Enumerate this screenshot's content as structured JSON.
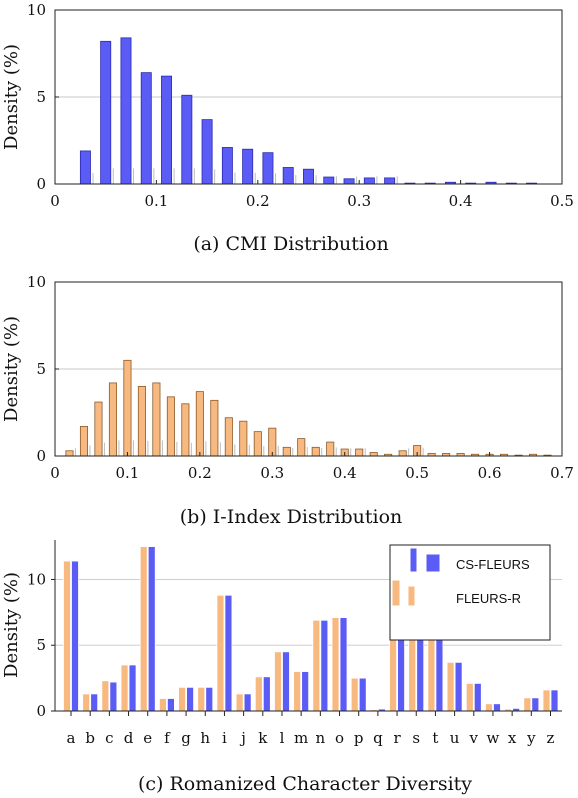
{
  "colors": {
    "blue": "#5b5bf5",
    "orange": "#f7b980",
    "grid": "#c8c8c8"
  },
  "chart_data": [
    {
      "type": "bar",
      "caption": "(a) CMI Distribution",
      "ylabel": "Density (%)",
      "xlim": [
        0,
        0.5
      ],
      "ylim": [
        0,
        10
      ],
      "xticks": [
        "0",
        "0.1",
        "0.2",
        "0.3",
        "0.4",
        "0.5"
      ],
      "yticks": [
        "0",
        "5",
        "10"
      ],
      "grid": true,
      "bar_width": 0.01,
      "series": [
        {
          "color": "blue",
          "x": [
            0.03,
            0.05,
            0.07,
            0.09,
            0.11,
            0.13,
            0.15,
            0.17,
            0.19,
            0.21,
            0.23,
            0.25,
            0.27,
            0.29,
            0.31,
            0.33,
            0.35,
            0.37,
            0.39,
            0.41,
            0.43,
            0.45,
            0.47,
            0.49
          ],
          "values": [
            1.9,
            8.2,
            8.4,
            6.4,
            6.2,
            5.1,
            3.7,
            2.1,
            2.0,
            1.8,
            0.95,
            0.85,
            0.4,
            0.3,
            0.35,
            0.35,
            0.05,
            0.05,
            0.1,
            0.05,
            0.1,
            0.05,
            0.05,
            0.0
          ]
        }
      ]
    },
    {
      "type": "bar",
      "caption": "(b) I-Index Distribution",
      "ylabel": "Density (%)",
      "xlim": [
        0,
        0.7
      ],
      "ylim": [
        0,
        10
      ],
      "xticks": [
        "0",
        "0.1",
        "0.2",
        "0.3",
        "0.4",
        "0.5",
        "0.6",
        "0.7"
      ],
      "yticks": [
        "0",
        "5",
        "10"
      ],
      "grid": true,
      "bar_width": 0.01,
      "series": [
        {
          "color": "orange",
          "x": [
            0.02,
            0.04,
            0.06,
            0.08,
            0.1,
            0.12,
            0.14,
            0.16,
            0.18,
            0.2,
            0.22,
            0.24,
            0.26,
            0.28,
            0.3,
            0.32,
            0.34,
            0.36,
            0.38,
            0.4,
            0.42,
            0.44,
            0.46,
            0.48,
            0.5,
            0.52,
            0.54,
            0.56,
            0.58,
            0.6,
            0.62,
            0.64,
            0.66,
            0.68
          ],
          "values": [
            0.3,
            1.7,
            3.1,
            4.2,
            5.5,
            4.0,
            4.2,
            3.4,
            3.0,
            3.7,
            3.2,
            2.2,
            2.0,
            1.4,
            1.6,
            0.5,
            1.0,
            0.5,
            0.8,
            0.4,
            0.4,
            0.2,
            0.1,
            0.3,
            0.6,
            0.15,
            0.15,
            0.15,
            0.1,
            0.1,
            0.1,
            0.05,
            0.1,
            0.05
          ]
        }
      ]
    },
    {
      "type": "bar",
      "caption": "(c) Romanized Character Diversity",
      "ylabel": "Density (%)",
      "ylim": [
        0,
        13
      ],
      "yticks": [
        "0",
        "5",
        "10"
      ],
      "grid": true,
      "legend": "top-right",
      "categories": [
        "a",
        "b",
        "c",
        "d",
        "e",
        "f",
        "g",
        "h",
        "i",
        "j",
        "k",
        "l",
        "m",
        "n",
        "o",
        "p",
        "q",
        "r",
        "s",
        "t",
        "u",
        "v",
        "w",
        "x",
        "y",
        "z"
      ],
      "series": [
        {
          "name": "FLEURS-R",
          "color": "orange",
          "values": [
            11.4,
            1.3,
            2.3,
            3.5,
            12.5,
            0.95,
            1.8,
            1.8,
            8.8,
            1.3,
            2.6,
            4.5,
            3.0,
            6.9,
            7.1,
            2.5,
            0.1,
            5.6,
            6.6,
            6.8,
            3.7,
            2.1,
            0.55,
            0.15,
            1.0,
            1.6
          ]
        },
        {
          "name": "CS-FLEURS",
          "color": "blue",
          "values": [
            11.4,
            1.3,
            2.2,
            3.5,
            12.5,
            0.95,
            1.8,
            1.8,
            8.8,
            1.3,
            2.6,
            4.5,
            3.0,
            6.9,
            7.1,
            2.5,
            0.15,
            5.6,
            6.6,
            6.8,
            3.7,
            2.1,
            0.55,
            0.2,
            1.0,
            1.6
          ]
        }
      ]
    }
  ]
}
